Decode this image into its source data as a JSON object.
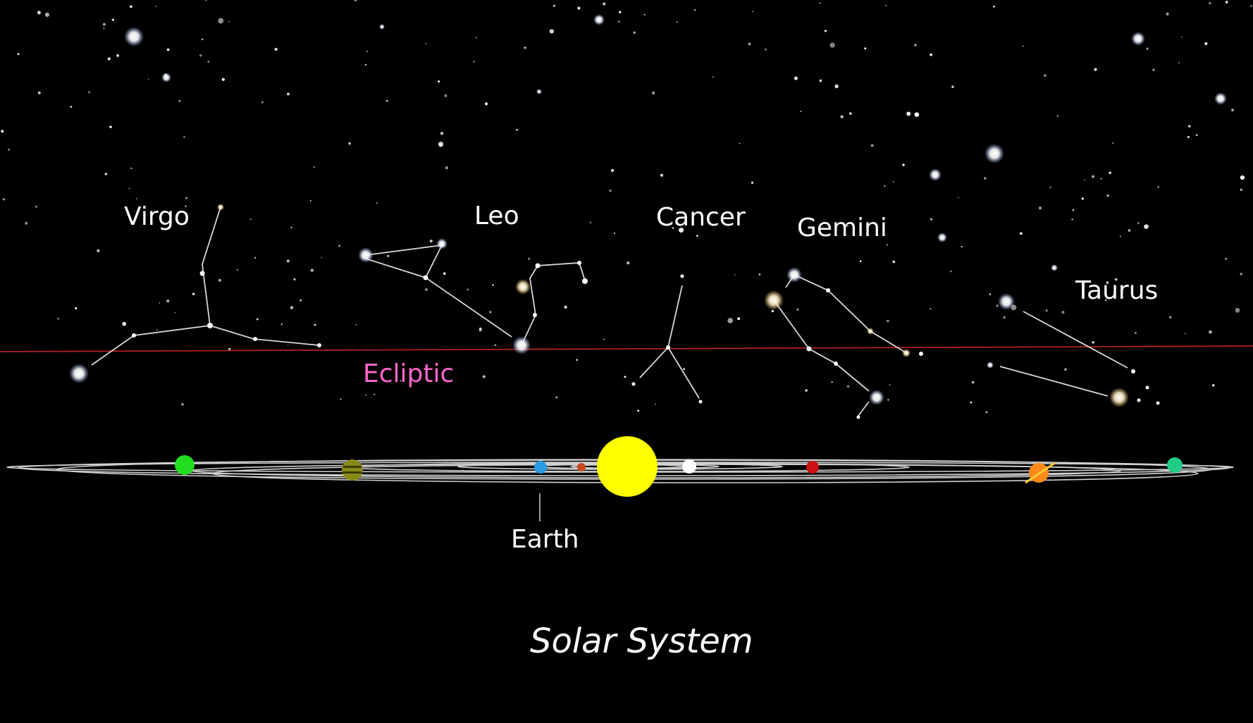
{
  "constellations": [
    {
      "id": "virgo",
      "label": "Virgo"
    },
    {
      "id": "leo",
      "label": "Leo"
    },
    {
      "id": "cancer",
      "label": "Cancer"
    },
    {
      "id": "gemini",
      "label": "Gemini"
    },
    {
      "id": "taurus",
      "label": "Taurus"
    }
  ],
  "ecliptic": {
    "label": "Ecliptic",
    "line_color": "#b02020",
    "label_color": "#ff66cc"
  },
  "earth": {
    "label": "Earth"
  },
  "title": "Solar System",
  "colors": {
    "sun": "#ffff00",
    "mercury": "#ffffff",
    "venus": "#c84a1e",
    "earth": "#2a9be0",
    "mars": "#cc1111",
    "jupiter": "#8a8a1a",
    "saturn": "#ff8a1a",
    "uranus": "#22cc88",
    "neptune": "#22dd22"
  }
}
